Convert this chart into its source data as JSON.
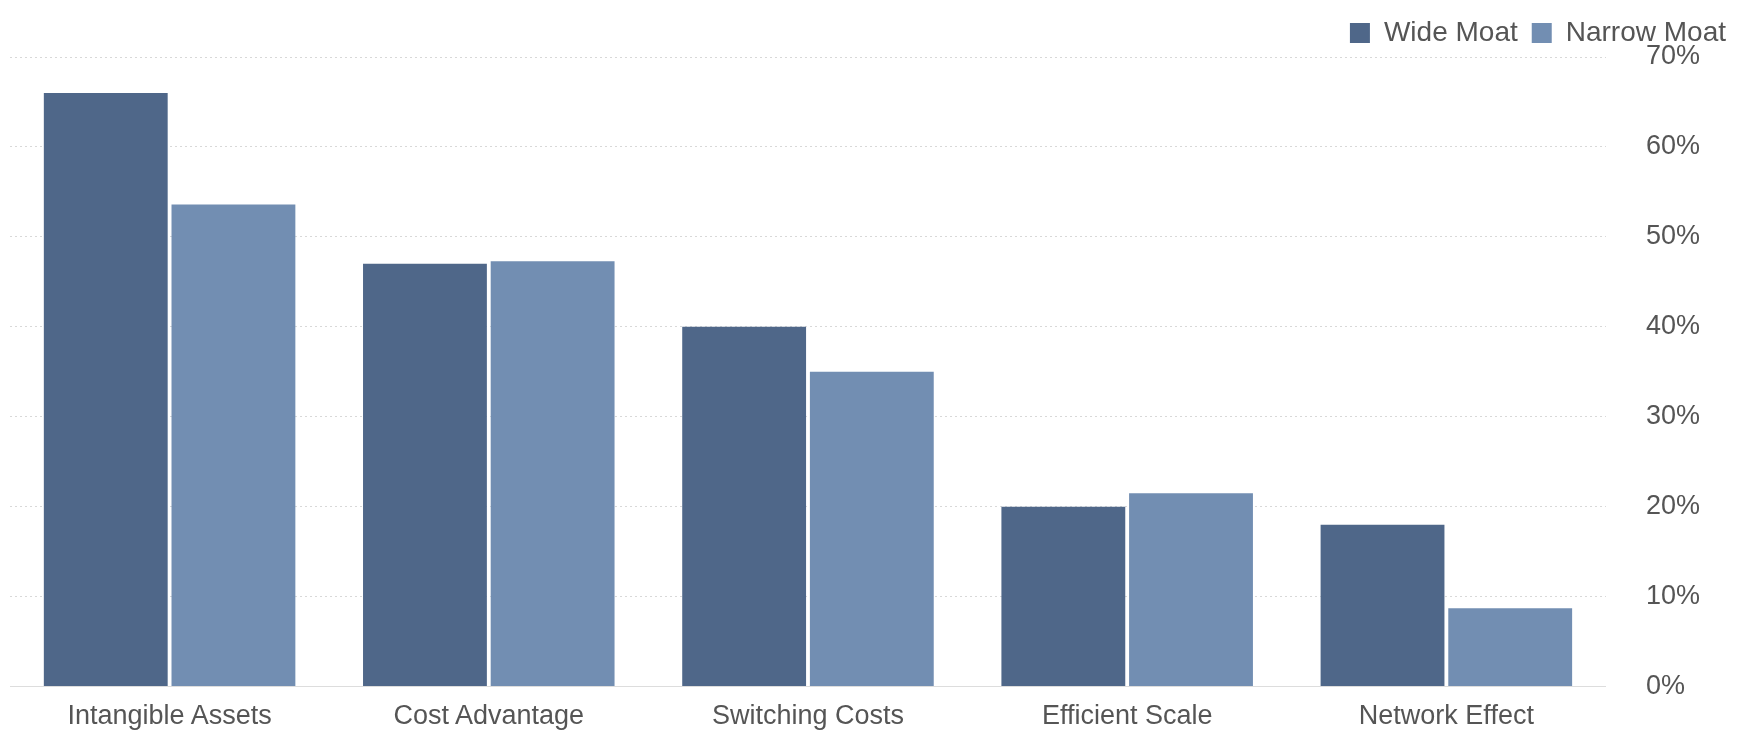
{
  "chart_data": {
    "type": "bar",
    "categories": [
      "Intangible Assets",
      "Cost Advantage",
      "Switching Costs",
      "Efficient Scale",
      "Network Effect"
    ],
    "series": [
      {
        "name": "Wide Moat",
        "color": "#4f6789",
        "values": [
          66,
          47,
          40,
          20,
          18
        ]
      },
      {
        "name": "Narrow Moat",
        "color": "#728eb2",
        "values": [
          53.6,
          47.3,
          35,
          21.5,
          8.7
        ]
      }
    ],
    "ylim": [
      0,
      70
    ],
    "yticks": [
      {
        "value": 0,
        "label": "0%"
      },
      {
        "value": 10,
        "label": "10%"
      },
      {
        "value": 20,
        "label": "20%"
      },
      {
        "value": 30,
        "label": "30%"
      },
      {
        "value": 40,
        "label": "40%"
      },
      {
        "value": 50,
        "label": "50%"
      },
      {
        "value": 60,
        "label": "60%"
      },
      {
        "value": 70,
        "label": "70%"
      }
    ],
    "grid": "y",
    "legend": "top right"
  }
}
